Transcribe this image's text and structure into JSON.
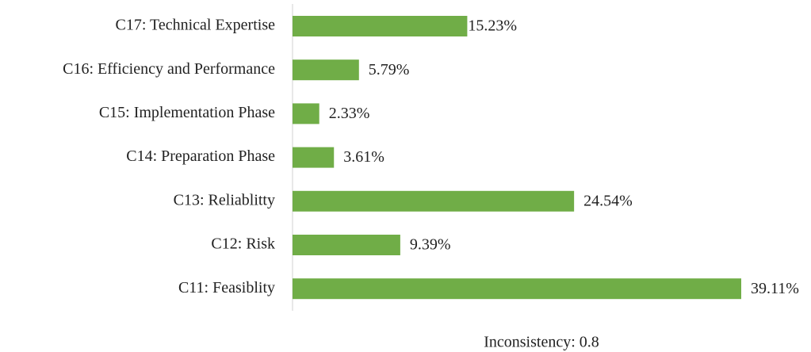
{
  "chart_data": {
    "type": "hbar",
    "categories": [
      "C17: Technical Expertise",
      "C16: Efficiency and Performance",
      "C15: Implementation Phase",
      "C14: Preparation Phase",
      "C13: Reliablitty",
      "C12: Risk",
      "C11: Feasiblity"
    ],
    "values": [
      15.23,
      5.79,
      2.33,
      3.61,
      24.54,
      9.39,
      39.11
    ],
    "value_labels": [
      "15.23%",
      "5.79%",
      "2.33%",
      "3.61%",
      "24.54%",
      "9.39%",
      "39.11%"
    ],
    "color": "#70ad47",
    "annotation": "Inconsistency: 0.8"
  }
}
